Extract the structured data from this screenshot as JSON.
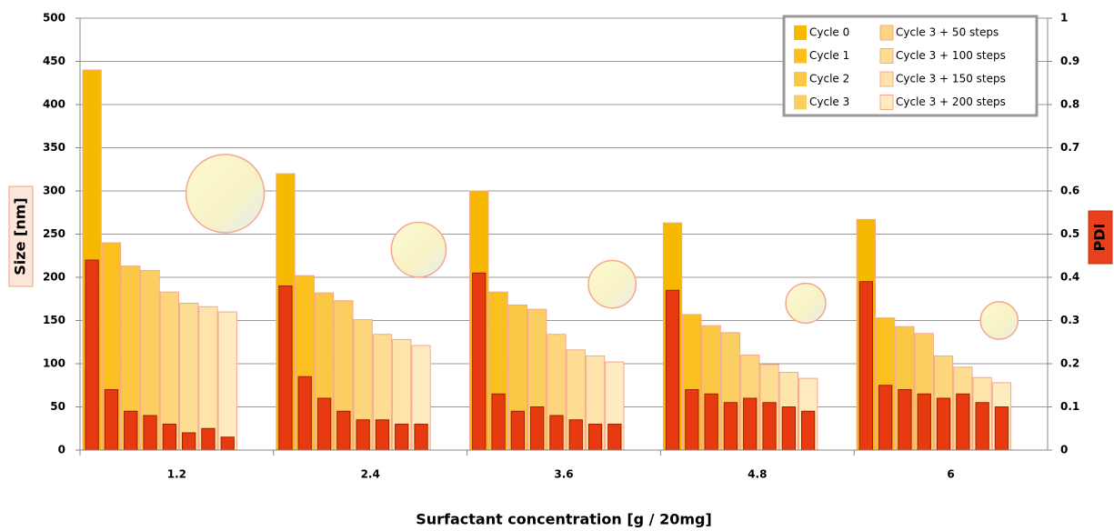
{
  "chart_data": {
    "type": "bar",
    "x_label": "Surfactant concentration [g / 20mg]",
    "y_label": "Size [nm]",
    "y2_label": "PDI",
    "categories": [
      "1.2",
      "2.4",
      "3.6",
      "4.8",
      "6"
    ],
    "ylim": [
      0,
      500
    ],
    "yticks": [
      0,
      50,
      100,
      150,
      200,
      250,
      300,
      350,
      400,
      450,
      500
    ],
    "y2lim": [
      0,
      1
    ],
    "y2ticks": [
      0,
      0.1,
      0.2,
      0.3,
      0.4,
      0.5,
      0.6,
      0.7,
      0.8,
      0.9,
      1
    ],
    "grid": true,
    "legend": "upper right",
    "pdi_color": "#e83a10",
    "series": [
      {
        "name": "Cycle 0",
        "color": "#f7b900",
        "values": [
          440,
          320,
          300,
          263,
          267
        ],
        "pdi": [
          0.44,
          0.38,
          0.41,
          0.37,
          0.39
        ]
      },
      {
        "name": "Cycle 1",
        "color": "#f9c020",
        "values": [
          240,
          202,
          183,
          157,
          153
        ],
        "pdi": [
          0.14,
          0.17,
          0.13,
          0.14,
          0.15
        ]
      },
      {
        "name": "Cycle 2",
        "color": "#fac845",
        "values": [
          213,
          182,
          168,
          144,
          143
        ],
        "pdi": [
          0.09,
          0.12,
          0.09,
          0.13,
          0.14
        ]
      },
      {
        "name": "Cycle 3",
        "color": "#fbce62",
        "values": [
          208,
          173,
          163,
          136,
          135
        ],
        "pdi": [
          0.08,
          0.09,
          0.1,
          0.11,
          0.13
        ]
      },
      {
        "name": "Cycle 3 + 50 steps",
        "color": "#fcd57c",
        "values": [
          183,
          151,
          134,
          110,
          109
        ],
        "pdi": [
          0.06,
          0.07,
          0.08,
          0.12,
          0.12
        ]
      },
      {
        "name": "Cycle 3 + 100 steps",
        "color": "#fddc93",
        "values": [
          170,
          134,
          116,
          99,
          96
        ],
        "pdi": [
          0.04,
          0.07,
          0.07,
          0.11,
          0.13
        ]
      },
      {
        "name": "Cycle 3 + 150 steps",
        "color": "#fee4aa",
        "values": [
          166,
          128,
          109,
          90,
          84
        ],
        "pdi": [
          0.05,
          0.06,
          0.06,
          0.1,
          0.11
        ]
      },
      {
        "name": "Cycle 3 + 200 steps",
        "color": "#ffebc0",
        "values": [
          160,
          121,
          102,
          83,
          78
        ],
        "pdi": [
          0.03,
          0.06,
          0.06,
          0.09,
          0.1
        ]
      }
    ],
    "bubbles": {
      "color": "#fbf7c8",
      "values": [
        297,
        232,
        192,
        170,
        150
      ],
      "sizes": [
        100,
        49,
        37,
        26,
        23
      ]
    }
  }
}
